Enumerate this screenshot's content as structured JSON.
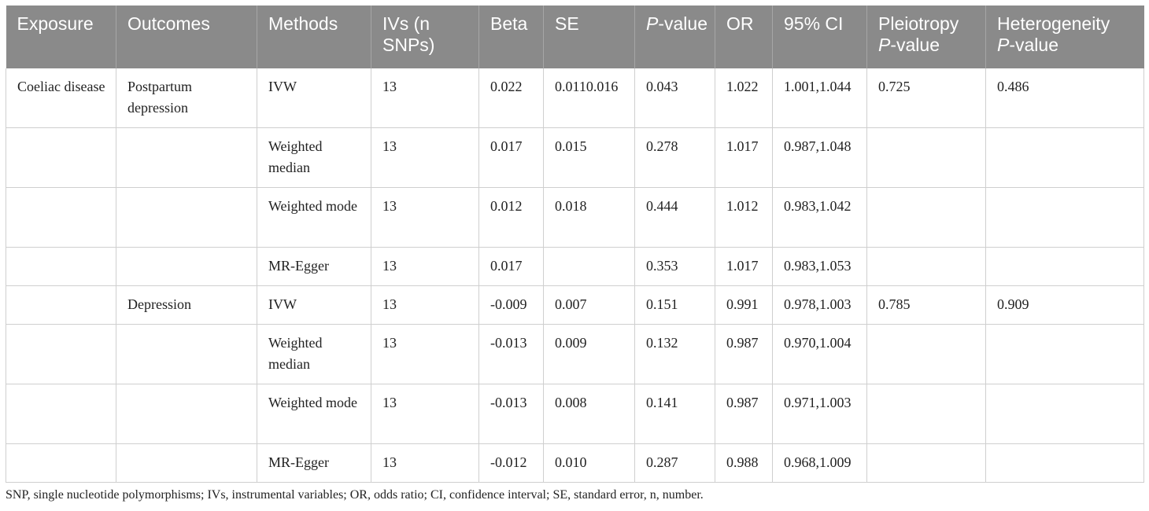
{
  "table": {
    "headers": [
      {
        "text": "Exposure"
      },
      {
        "text": "Outcomes"
      },
      {
        "text": "Methods"
      },
      {
        "text": "IVs (n SNPs)"
      },
      {
        "text": "Beta"
      },
      {
        "text": "SE"
      },
      {
        "italic": "P",
        "text": "-value"
      },
      {
        "text": "OR"
      },
      {
        "text": "95% CI"
      },
      {
        "text": "Pleiotropy",
        "italic": "P",
        "tail": "-value"
      },
      {
        "text": "Heterogeneity",
        "italic": "P",
        "tail": "-value"
      }
    ],
    "rows": [
      [
        "Coeliac disease",
        "Postpartum depression",
        "IVW",
        "13",
        "0.022",
        "0.0110.016",
        "0.043",
        "1.022",
        "1.001,1.044",
        "0.725",
        "0.486"
      ],
      [
        "",
        "",
        "Weighted median",
        "13",
        "0.017",
        "0.015",
        "0.278",
        "1.017",
        "0.987,1.048",
        "",
        ""
      ],
      [
        "",
        "",
        "Weighted mode",
        "13",
        "0.012",
        "0.018",
        "0.444",
        "1.012",
        "0.983,1.042",
        "",
        ""
      ],
      [
        "",
        "",
        "MR-Egger",
        "13",
        "0.017",
        "",
        "0.353",
        "1.017",
        "0.983,1.053",
        "",
        ""
      ],
      [
        "",
        "Depression",
        "IVW",
        "13",
        "-0.009",
        "0.007",
        "0.151",
        "0.991",
        "0.978,1.003",
        "0.785",
        "0.909"
      ],
      [
        "",
        "",
        "Weighted median",
        "13",
        "-0.013",
        "0.009",
        "0.132",
        "0.987",
        "0.970,1.004",
        "",
        ""
      ],
      [
        "",
        "",
        "Weighted mode",
        "13",
        "-0.013",
        "0.008",
        "0.141",
        "0.987",
        "0.971,1.003",
        "",
        ""
      ],
      [
        "",
        "",
        "MR-Egger",
        "13",
        "-0.012",
        "0.010",
        "0.287",
        "0.988",
        "0.968,1.009",
        "",
        ""
      ]
    ]
  },
  "footnote": "SNP, single nucleotide polymorphisms; IVs, instrumental variables; OR, odds ratio; CI, confidence interval; SE, standard error, n, number."
}
